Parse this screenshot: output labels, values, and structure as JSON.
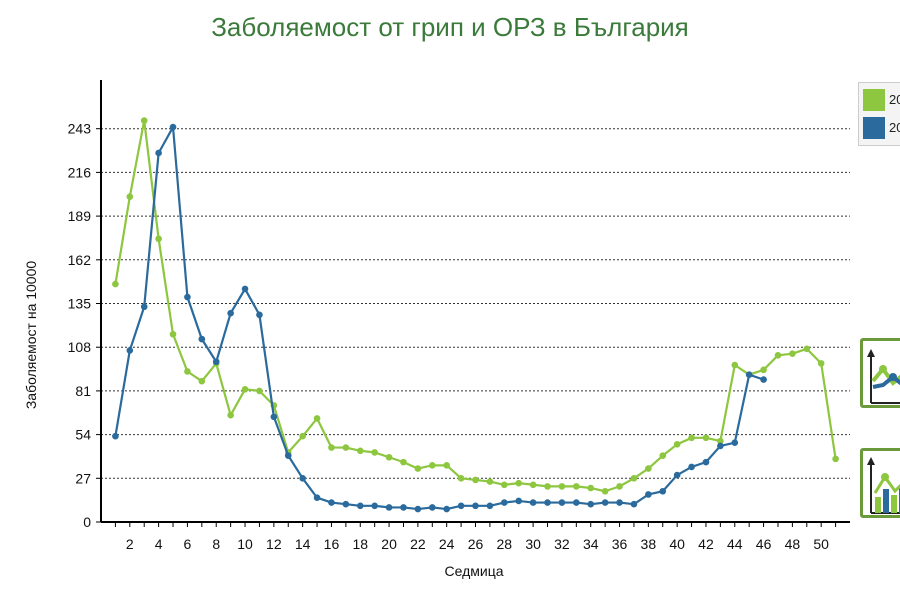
{
  "chart_data": {
    "type": "line",
    "title": "Заболяемост от грип и ОРЗ в България",
    "xlabel": "Седмица",
    "ylabel": "Заболяемост на 10000",
    "xlim": [
      0,
      52
    ],
    "ylim": [
      0,
      270
    ],
    "yticks": [
      0,
      27,
      54,
      81,
      108,
      135,
      162,
      189,
      216,
      243
    ],
    "xticks": [
      2,
      4,
      6,
      8,
      10,
      12,
      14,
      16,
      18,
      20,
      22,
      24,
      26,
      28,
      30,
      32,
      34,
      36,
      38,
      40,
      42,
      44,
      46,
      48,
      50
    ],
    "grid": true,
    "legend_position": "top-right",
    "series": [
      {
        "name": "20",
        "color": "#8dc63f",
        "x": [
          1,
          2,
          3,
          4,
          5,
          6,
          7,
          8,
          9,
          10,
          11,
          12,
          13,
          14,
          15,
          16,
          17,
          18,
          19,
          20,
          21,
          22,
          23,
          24,
          25,
          26,
          27,
          28,
          29,
          30,
          31,
          32,
          33,
          34,
          35,
          36,
          37,
          38,
          39,
          40,
          41,
          42,
          43,
          44,
          45,
          46,
          47,
          48,
          49,
          50,
          51
        ],
        "values": [
          147,
          201,
          248,
          175,
          116,
          93,
          87,
          98,
          66,
          82,
          81,
          72,
          43,
          53,
          64,
          46,
          46,
          44,
          43,
          40,
          37,
          33,
          35,
          35,
          27,
          26,
          25,
          23,
          24,
          23,
          22,
          22,
          22,
          21,
          19,
          22,
          27,
          33,
          41,
          48,
          52,
          52,
          50,
          97,
          91,
          94,
          103,
          104,
          107,
          98,
          39
        ]
      },
      {
        "name": "20",
        "color": "#2a6a9c",
        "x": [
          1,
          2,
          3,
          4,
          5,
          6,
          7,
          8,
          9,
          10,
          11,
          12,
          13,
          14,
          15,
          16,
          17,
          18,
          19,
          20,
          21,
          22,
          23,
          24,
          25,
          26,
          27,
          28,
          29,
          30,
          31,
          32,
          33,
          34,
          35,
          36,
          37,
          38,
          39,
          40,
          41,
          42,
          43,
          44,
          45,
          46
        ],
        "values": [
          53,
          106,
          133,
          228,
          244,
          139,
          113,
          99,
          129,
          144,
          128,
          65,
          41,
          27,
          15,
          12,
          11,
          10,
          10,
          9,
          9,
          8,
          9,
          8,
          10,
          10,
          10,
          12,
          13,
          12,
          12,
          12,
          12,
          11,
          12,
          12,
          11,
          17,
          19,
          29,
          34,
          37,
          47,
          49,
          91,
          88
        ]
      }
    ]
  },
  "legend": {
    "items": [
      {
        "label": "20",
        "color": "#8dc63f"
      },
      {
        "label": "20",
        "color": "#2a6a9c"
      }
    ]
  },
  "buttons": {
    "line_chart_icon": "line-chart-icon",
    "bar_chart_icon": "bar-chart-icon",
    "border_color": "#6a9a3a"
  }
}
